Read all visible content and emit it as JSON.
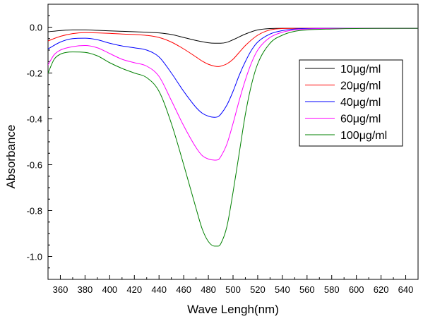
{
  "chart_data": {
    "type": "line",
    "title": "",
    "xlabel": "Wave Lengh(nm)",
    "ylabel": "Absorbance",
    "xlim": [
      350,
      650
    ],
    "ylim": [
      -1.1,
      0.1
    ],
    "xticks": [
      360,
      380,
      400,
      420,
      440,
      460,
      480,
      500,
      520,
      540,
      560,
      580,
      600,
      620,
      640
    ],
    "yticks": [
      0.0,
      -0.2,
      -0.4,
      -0.6,
      -0.8,
      -1.0
    ],
    "ytick_labels": [
      "0.0",
      "-0.2",
      "-0.4",
      "-0.6",
      "-0.8",
      "-1.0"
    ],
    "grid": false,
    "legend_position": "top-right",
    "series": [
      {
        "name": "10μg/ml",
        "color": "#000000",
        "x": [
          350,
          360,
          370,
          380,
          390,
          400,
          410,
          420,
          430,
          440,
          450,
          460,
          470,
          480,
          485,
          490,
          495,
          500,
          510,
          520,
          530,
          540,
          560,
          580,
          600,
          620,
          650
        ],
        "y": [
          -0.02,
          -0.015,
          -0.012,
          -0.012,
          -0.014,
          -0.016,
          -0.018,
          -0.02,
          -0.022,
          -0.025,
          -0.032,
          -0.045,
          -0.058,
          -0.068,
          -0.07,
          -0.07,
          -0.066,
          -0.055,
          -0.03,
          -0.012,
          -0.006,
          -0.005,
          -0.005,
          -0.005,
          -0.005,
          -0.005,
          -0.005
        ]
      },
      {
        "name": "20μg/ml",
        "color": "#ff0000",
        "x": [
          350,
          360,
          370,
          380,
          390,
          400,
          410,
          420,
          430,
          440,
          450,
          460,
          470,
          475,
          480,
          485,
          488,
          490,
          495,
          500,
          505,
          510,
          520,
          530,
          540,
          560,
          580,
          600,
          620,
          650
        ],
        "y": [
          -0.06,
          -0.04,
          -0.028,
          -0.024,
          -0.025,
          -0.027,
          -0.03,
          -0.032,
          -0.036,
          -0.045,
          -0.065,
          -0.095,
          -0.13,
          -0.148,
          -0.162,
          -0.17,
          -0.172,
          -0.17,
          -0.16,
          -0.14,
          -0.11,
          -0.08,
          -0.035,
          -0.012,
          -0.006,
          -0.005,
          -0.005,
          -0.005,
          -0.005,
          -0.005
        ]
      },
      {
        "name": "40μg/ml",
        "color": "#0000ff",
        "x": [
          350,
          360,
          370,
          380,
          390,
          400,
          410,
          420,
          430,
          440,
          450,
          460,
          470,
          475,
          480,
          485,
          488,
          490,
          495,
          500,
          505,
          510,
          515,
          520,
          530,
          540,
          550,
          560,
          580,
          600,
          620,
          650
        ],
        "y": [
          -0.095,
          -0.065,
          -0.05,
          -0.048,
          -0.055,
          -0.07,
          -0.082,
          -0.09,
          -0.1,
          -0.13,
          -0.2,
          -0.28,
          -0.35,
          -0.375,
          -0.388,
          -0.393,
          -0.39,
          -0.38,
          -0.34,
          -0.28,
          -0.21,
          -0.15,
          -0.1,
          -0.065,
          -0.03,
          -0.015,
          -0.008,
          -0.006,
          -0.005,
          -0.005,
          -0.005,
          -0.005
        ]
      },
      {
        "name": "60μg/ml",
        "color": "#ff00ff",
        "x": [
          350,
          355,
          360,
          370,
          380,
          390,
          400,
          410,
          420,
          430,
          440,
          450,
          460,
          470,
          475,
          480,
          485,
          488,
          490,
          495,
          500,
          505,
          510,
          515,
          520,
          530,
          540,
          550,
          560,
          580,
          600,
          620,
          650
        ],
        "y": [
          -0.165,
          -0.12,
          -0.1,
          -0.085,
          -0.08,
          -0.09,
          -0.115,
          -0.14,
          -0.155,
          -0.17,
          -0.215,
          -0.32,
          -0.43,
          -0.525,
          -0.56,
          -0.575,
          -0.58,
          -0.578,
          -0.565,
          -0.51,
          -0.42,
          -0.32,
          -0.23,
          -0.155,
          -0.1,
          -0.045,
          -0.022,
          -0.012,
          -0.008,
          -0.006,
          -0.005,
          -0.005,
          -0.005
        ]
      },
      {
        "name": "100μg/ml",
        "color": "#008000",
        "x": [
          350,
          355,
          360,
          365,
          370,
          380,
          390,
          400,
          410,
          420,
          430,
          440,
          450,
          460,
          470,
          475,
          480,
          485,
          488,
          490,
          495,
          500,
          505,
          510,
          515,
          520,
          530,
          540,
          550,
          560,
          580,
          600,
          620,
          650
        ],
        "y": [
          -0.2,
          -0.14,
          -0.118,
          -0.11,
          -0.108,
          -0.11,
          -0.125,
          -0.155,
          -0.18,
          -0.2,
          -0.22,
          -0.28,
          -0.42,
          -0.6,
          -0.79,
          -0.88,
          -0.935,
          -0.955,
          -0.955,
          -0.945,
          -0.87,
          -0.72,
          -0.55,
          -0.38,
          -0.25,
          -0.16,
          -0.07,
          -0.035,
          -0.018,
          -0.012,
          -0.008,
          -0.006,
          -0.005,
          -0.005
        ]
      }
    ]
  }
}
